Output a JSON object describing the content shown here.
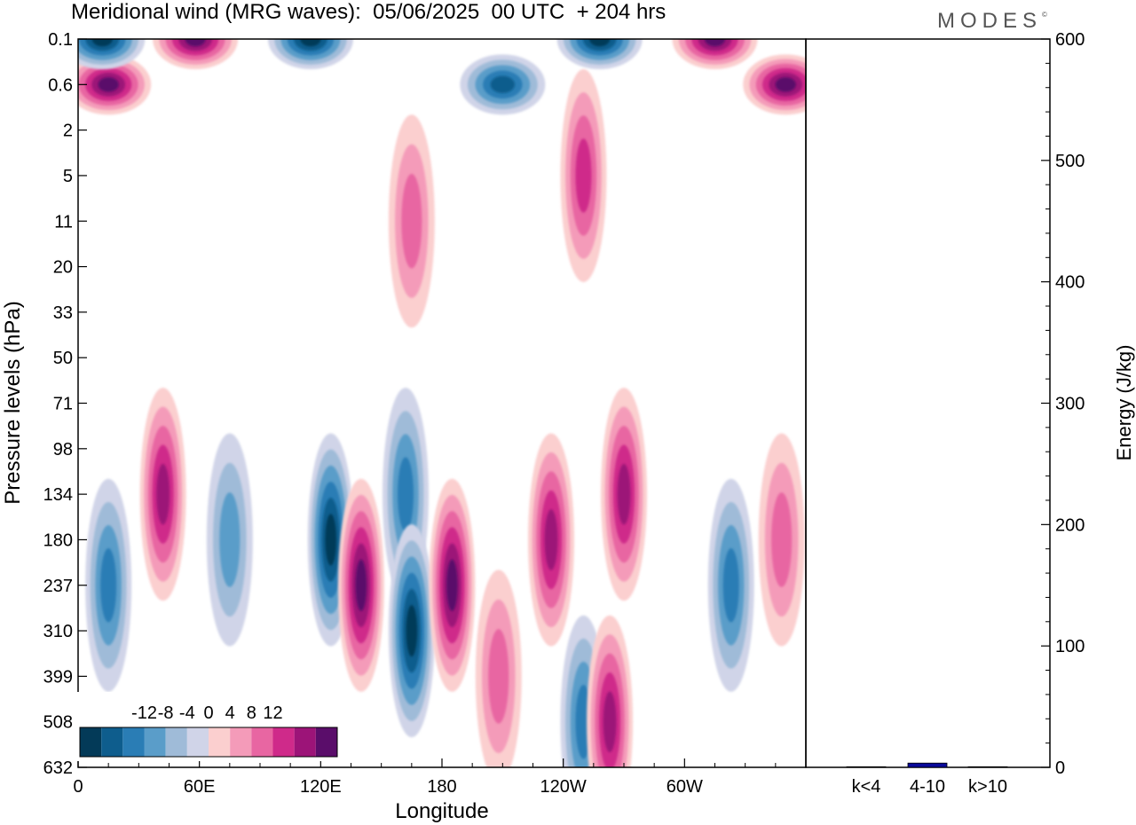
{
  "title": "Meridional wind (MRG waves):  05/06/2025  00 UTC  + 204 hrs",
  "brand": "MODES",
  "brand_mark": "©",
  "colors": {
    "neg": [
      "#033a58",
      "#0e5d8d",
      "#2a7db5",
      "#5a9dc9",
      "#9fbbd8",
      "#d0d4e8"
    ],
    "pos": [
      "#fbcfcf",
      "#f49bb9",
      "#e866a2",
      "#cf2a8a",
      "#9c1478",
      "#5a0d6a"
    ],
    "bar": "#0a0a9a"
  },
  "chart_data": [
    {
      "type": "heatmap",
      "title": "Meridional wind (MRG waves):  05/06/2025  00 UTC  + 204 hrs",
      "xlabel": "Longitude",
      "ylabel": "Pressure levels (hPa)",
      "x_ticks": [
        "0",
        "60E",
        "120E",
        "180",
        "120W",
        "60W"
      ],
      "x_tick_values": [
        0,
        60,
        120,
        180,
        240,
        300
      ],
      "xlim": [
        0,
        360
      ],
      "y_ticks": [
        "0.1",
        "0.6",
        "2",
        "5",
        "11",
        "20",
        "33",
        "50",
        "71",
        "98",
        "134",
        "180",
        "237",
        "310",
        "399",
        "508",
        "632"
      ],
      "colorbar_labels": [
        "-12",
        "-8",
        "-4",
        "0",
        "4",
        "8",
        "12"
      ],
      "colorbar_values": [
        -12,
        -8,
        -4,
        0,
        4,
        8,
        12
      ],
      "features": [
        {
          "lon": 15,
          "level": "237",
          "value": -7
        },
        {
          "lon": 42,
          "level": "134",
          "value": 9
        },
        {
          "lon": 75,
          "level": "180",
          "value": -5
        },
        {
          "lon": 125,
          "level": "180",
          "value": -12
        },
        {
          "lon": 140,
          "level": "237",
          "value": 12
        },
        {
          "lon": 162,
          "level": "134",
          "value": -8
        },
        {
          "lon": 165,
          "level": "310",
          "value": -11
        },
        {
          "lon": 185,
          "level": "237",
          "value": 13
        },
        {
          "lon": 208,
          "level": "399",
          "value": 6
        },
        {
          "lon": 234,
          "level": "180",
          "value": 9
        },
        {
          "lon": 250,
          "level": "508",
          "value": -8
        },
        {
          "lon": 270,
          "level": "134",
          "value": 10
        },
        {
          "lon": 263,
          "level": "508",
          "value": 9
        },
        {
          "lon": 323,
          "level": "237",
          "value": -8
        },
        {
          "lon": 348,
          "level": "180",
          "value": 6
        },
        {
          "lon": 15,
          "level": "0.6",
          "value": 13
        },
        {
          "lon": 58,
          "level": "0.1",
          "value": 12
        },
        {
          "lon": 12,
          "level": "0.1",
          "value": -12
        },
        {
          "lon": 115,
          "level": "0.1",
          "value": -13
        },
        {
          "lon": 315,
          "level": "0.1",
          "value": 14
        },
        {
          "lon": 258,
          "level": "0.1",
          "value": -13
        },
        {
          "lon": 350,
          "level": "0.6",
          "value": 13
        },
        {
          "lon": 210,
          "level": "0.6",
          "value": -9
        },
        {
          "lon": 250,
          "level": "5",
          "value": 8
        },
        {
          "lon": 165,
          "level": "11",
          "value": 6
        }
      ]
    },
    {
      "type": "bar",
      "ylabel": "Energy (J/kg)",
      "categories": [
        "k<4",
        "4-10",
        "k>10"
      ],
      "values": [
        0.5,
        3.5,
        0.5
      ],
      "ylim": [
        0,
        600
      ],
      "y_ticks": [
        "0",
        "100",
        "200",
        "300",
        "400",
        "500",
        "600"
      ]
    }
  ]
}
